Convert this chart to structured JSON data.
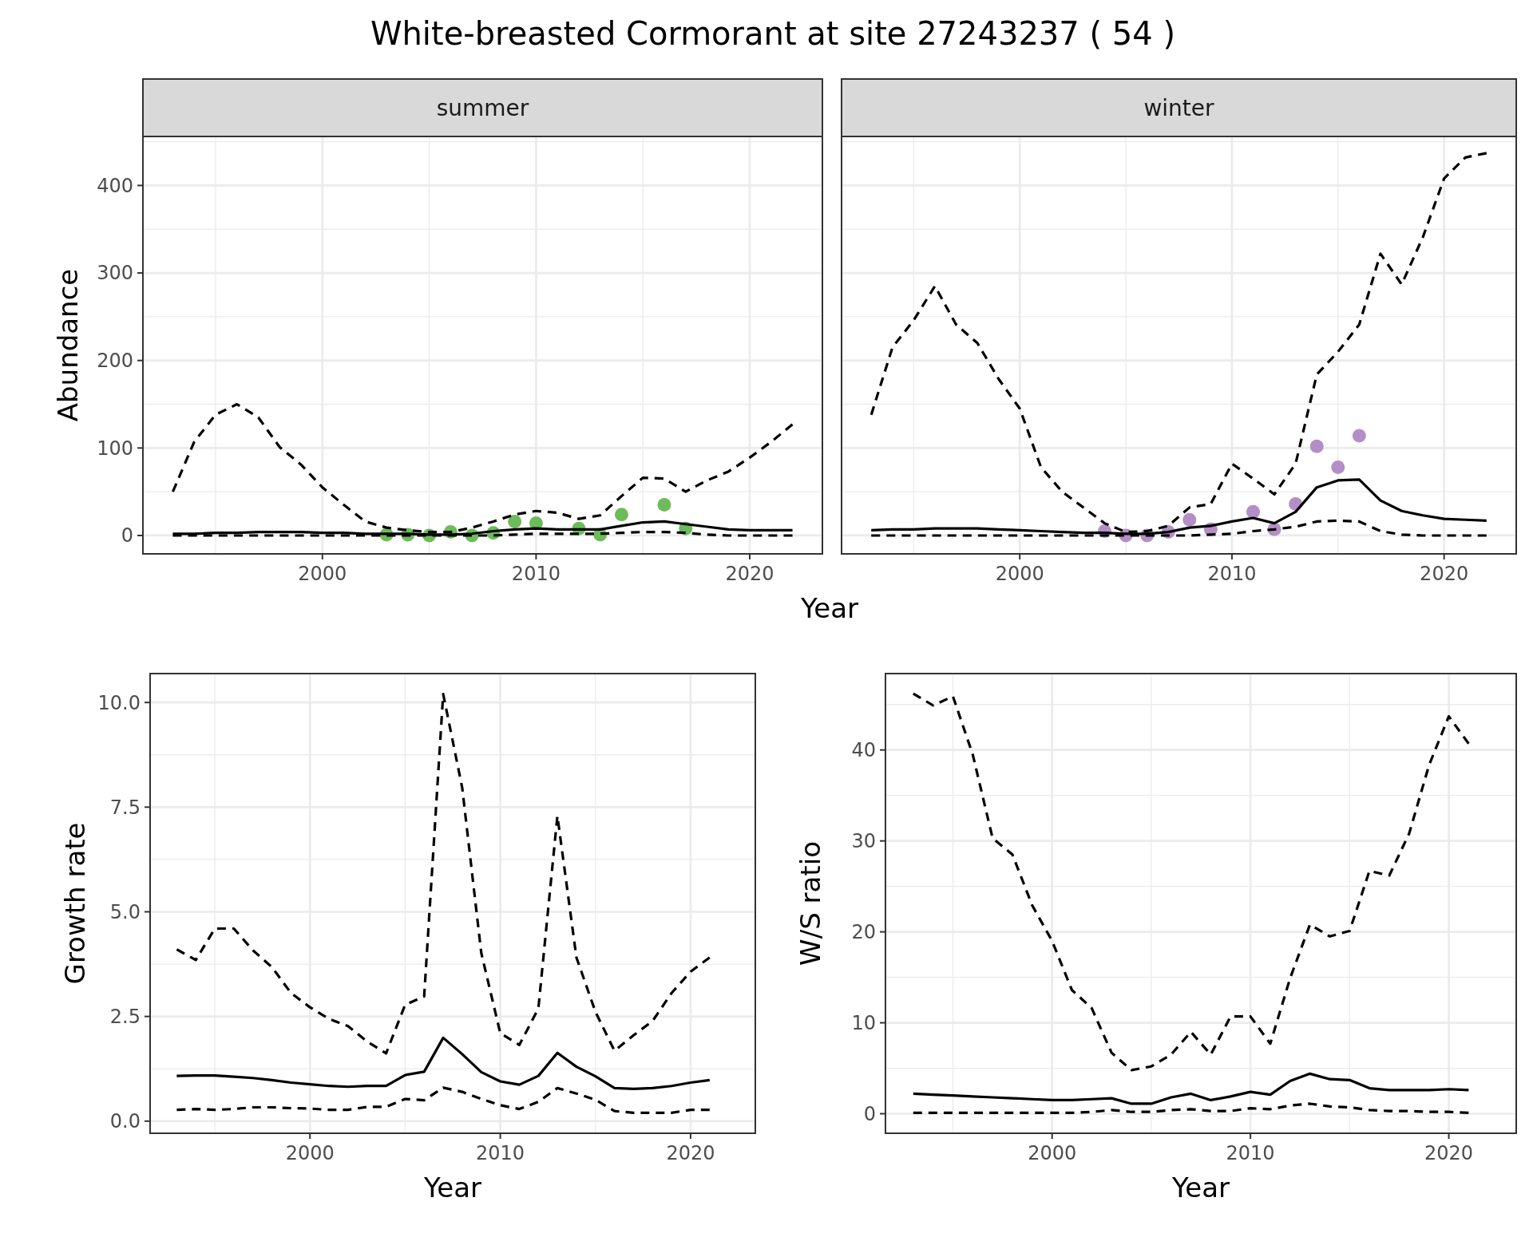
{
  "chart_data": [
    {
      "type": "line",
      "title": "White-breasted Cormorant at site 27243237 ( 54 )",
      "subtitle": "summer",
      "xlabel": "Year",
      "ylabel": "Abundance",
      "xlim": [
        1991.6,
        2023.4
      ],
      "ylim": [
        -21,
        456
      ],
      "xticks": [
        2000,
        2010,
        2020
      ],
      "yticks": [
        0,
        100,
        200,
        300,
        400
      ],
      "grid": true,
      "series": [
        {
          "type": "line",
          "color": "#000000",
          "line_style": "dashed",
          "x": [
            1993,
            1994,
            1995,
            1996,
            1997,
            1998,
            1999,
            2000,
            2001,
            2002,
            2003,
            2004,
            2005,
            2006,
            2007,
            2008,
            2009,
            2010,
            2011,
            2012,
            2013,
            2014,
            2015,
            2016,
            2017,
            2018,
            2019,
            2020,
            2021,
            2022
          ],
          "values": [
            50,
            107,
            138,
            150,
            135,
            101,
            81,
            55,
            35,
            16,
            9,
            6,
            4,
            4,
            9,
            16,
            24,
            28,
            26,
            19,
            23,
            45,
            66,
            65,
            50,
            63,
            73,
            89,
            107,
            127
          ]
        },
        {
          "type": "line",
          "color": "#000000",
          "line_style": "solid",
          "x": [
            1993,
            1994,
            1995,
            1996,
            1997,
            1998,
            1999,
            2000,
            2001,
            2002,
            2003,
            2004,
            2005,
            2006,
            2007,
            2008,
            2009,
            2010,
            2011,
            2012,
            2013,
            2014,
            2015,
            2016,
            2017,
            2018,
            2019,
            2020,
            2021,
            2022
          ],
          "values": [
            2,
            2,
            3,
            3,
            4,
            4,
            4,
            3,
            3,
            2,
            2,
            2,
            1,
            1,
            2,
            5,
            7,
            8,
            7,
            7,
            7,
            11,
            15,
            16,
            13,
            10,
            7,
            6,
            6,
            6
          ]
        },
        {
          "type": "line",
          "color": "#000000",
          "line_style": "dashed",
          "x": [
            1993,
            1994,
            1995,
            1996,
            1997,
            1998,
            1999,
            2000,
            2001,
            2002,
            2003,
            2004,
            2005,
            2006,
            2007,
            2008,
            2009,
            2010,
            2011,
            2012,
            2013,
            2014,
            2015,
            2016,
            2017,
            2018,
            2019,
            2020,
            2021,
            2022
          ],
          "values": [
            0,
            0,
            0,
            0,
            0,
            0,
            0,
            0,
            0,
            0,
            0,
            0,
            0,
            0,
            0,
            0,
            1,
            2,
            2,
            2,
            2,
            3,
            4,
            4,
            3,
            1,
            0,
            0,
            0,
            0
          ]
        },
        {
          "type": "scatter",
          "color": "#6dbb5a",
          "marker": "circle",
          "x": [
            2003,
            2004,
            2005,
            2006,
            2007,
            2008,
            2009,
            2010,
            2012,
            2013,
            2014,
            2016,
            2017
          ],
          "values": [
            1,
            1,
            0,
            4,
            0,
            3,
            16,
            14,
            8,
            1,
            24,
            35,
            8
          ]
        }
      ]
    },
    {
      "type": "line",
      "subtitle": "winter",
      "xlim": [
        1991.6,
        2023.4
      ],
      "ylim": [
        -21,
        456
      ],
      "xticks": [
        2000,
        2010,
        2020
      ],
      "yticks": [
        0,
        100,
        200,
        300,
        400
      ],
      "grid": true,
      "tick_labels": "x",
      "series": [
        {
          "type": "line",
          "color": "#000000",
          "line_style": "dashed",
          "x": [
            1993,
            1994,
            1995,
            1996,
            1997,
            1998,
            1999,
            2000,
            2001,
            2002,
            2003,
            2004,
            2005,
            2006,
            2007,
            2008,
            2009,
            2010,
            2011,
            2012,
            2013,
            2014,
            2015,
            2016,
            2017,
            2018,
            2019,
            2020,
            2021,
            2022
          ],
          "values": [
            138,
            215,
            246,
            285,
            241,
            220,
            179,
            145,
            78,
            50,
            32,
            14,
            4,
            5,
            11,
            32,
            36,
            82,
            65,
            47,
            82,
            184,
            210,
            241,
            322,
            287,
            341,
            408,
            432,
            437
          ]
        },
        {
          "type": "line",
          "color": "#000000",
          "line_style": "solid",
          "x": [
            1993,
            1994,
            1995,
            1996,
            1997,
            1998,
            1999,
            2000,
            2001,
            2002,
            2003,
            2004,
            2005,
            2006,
            2007,
            2008,
            2009,
            2010,
            2011,
            2012,
            2013,
            2014,
            2015,
            2016,
            2017,
            2018,
            2019,
            2020,
            2021,
            2022
          ],
          "values": [
            6,
            7,
            7,
            8,
            8,
            8,
            7,
            6,
            5,
            4,
            3,
            3,
            2,
            2,
            4,
            9,
            11,
            16,
            20,
            14,
            27,
            55,
            63,
            64,
            40,
            28,
            23,
            19,
            18,
            17
          ]
        },
        {
          "type": "line",
          "color": "#000000",
          "line_style": "dashed",
          "x": [
            1993,
            1994,
            1995,
            1996,
            1997,
            1998,
            1999,
            2000,
            2001,
            2002,
            2003,
            2004,
            2005,
            2006,
            2007,
            2008,
            2009,
            2010,
            2011,
            2012,
            2013,
            2014,
            2015,
            2016,
            2017,
            2018,
            2019,
            2020,
            2021,
            2022
          ],
          "values": [
            0,
            0,
            0,
            0,
            0,
            0,
            0,
            0,
            0,
            0,
            0,
            0,
            0,
            0,
            0,
            0,
            1,
            2,
            5,
            7,
            10,
            16,
            17,
            16,
            5,
            1,
            0,
            0,
            0,
            0
          ]
        },
        {
          "type": "scatter",
          "color": "#b48ec6",
          "marker": "circle",
          "x": [
            2004,
            2005,
            2006,
            2007,
            2008,
            2009,
            2011,
            2012,
            2013,
            2014,
            2015,
            2016
          ],
          "values": [
            5,
            0,
            0,
            4,
            18,
            7,
            27,
            7,
            36,
            102,
            78,
            114
          ]
        }
      ]
    },
    {
      "type": "line",
      "xlabel": "Year",
      "ylabel": "Growth rate",
      "xlim": [
        1991.6,
        2023.4
      ],
      "ylim": [
        -0.29,
        10.69
      ],
      "xticks": [
        2000,
        2010,
        2020
      ],
      "yticks": [
        {
          "value": 0,
          "label": "0.0"
        },
        {
          "value": 2.5,
          "label": "2.5"
        },
        {
          "value": 5,
          "label": "5.0"
        },
        {
          "value": 7.5,
          "label": "7.5"
        },
        {
          "value": 10,
          "label": "10.0"
        }
      ],
      "grid": true,
      "series": [
        {
          "type": "line",
          "color": "#000000",
          "line_style": "dashed",
          "x": [
            1993,
            1994,
            1995,
            1996,
            1997,
            1998,
            1999,
            2000,
            2001,
            2002,
            2003,
            2004,
            2005,
            2006,
            2007,
            2008,
            2009,
            2010,
            2011,
            2012,
            2013,
            2014,
            2015,
            2016,
            2017,
            2018,
            2019,
            2020,
            2021
          ],
          "values": [
            4.1,
            3.85,
            4.6,
            4.6,
            4.08,
            3.68,
            3.06,
            2.72,
            2.44,
            2.27,
            1.9,
            1.62,
            2.78,
            2.98,
            10.2,
            7.96,
            4.02,
            2.1,
            1.82,
            2.69,
            7.29,
            3.91,
            2.61,
            1.68,
            2.05,
            2.39,
            3.06,
            3.57,
            3.91
          ]
        },
        {
          "type": "line",
          "color": "#000000",
          "line_style": "solid",
          "x": [
            1993,
            1994,
            1995,
            1996,
            1997,
            1998,
            1999,
            2000,
            2001,
            2002,
            2003,
            2004,
            2005,
            2006,
            2007,
            2008,
            2009,
            2010,
            2011,
            2012,
            2013,
            2014,
            2015,
            2016,
            2017,
            2018,
            2019,
            2020,
            2021
          ],
          "values": [
            1.08,
            1.09,
            1.09,
            1.06,
            1.03,
            0.98,
            0.92,
            0.88,
            0.84,
            0.82,
            0.84,
            0.84,
            1.1,
            1.18,
            1.99,
            1.6,
            1.17,
            0.95,
            0.87,
            1.08,
            1.63,
            1.3,
            1.07,
            0.79,
            0.77,
            0.79,
            0.84,
            0.92,
            0.98
          ]
        },
        {
          "type": "line",
          "color": "#000000",
          "line_style": "dashed",
          "x": [
            1993,
            1994,
            1995,
            1996,
            1997,
            1998,
            1999,
            2000,
            2001,
            2002,
            2003,
            2004,
            2005,
            2006,
            2007,
            2008,
            2009,
            2010,
            2011,
            2012,
            2013,
            2014,
            2015,
            2016,
            2017,
            2018,
            2019,
            2020,
            2021
          ],
          "values": [
            0.27,
            0.29,
            0.27,
            0.29,
            0.33,
            0.33,
            0.31,
            0.3,
            0.27,
            0.27,
            0.34,
            0.34,
            0.53,
            0.5,
            0.8,
            0.7,
            0.53,
            0.38,
            0.29,
            0.46,
            0.79,
            0.66,
            0.51,
            0.24,
            0.2,
            0.2,
            0.2,
            0.27,
            0.27
          ]
        }
      ]
    },
    {
      "type": "line",
      "xlabel": "Year",
      "ylabel": "W/S ratio",
      "xlim": [
        1991.6,
        2023.4
      ],
      "ylim": [
        -2.15,
        48.4
      ],
      "xticks": [
        2000,
        2010,
        2020
      ],
      "yticks": [
        0,
        10,
        20,
        30,
        40
      ],
      "grid": true,
      "series": [
        {
          "type": "line",
          "color": "#000000",
          "line_style": "dashed",
          "x": [
            1993,
            1994,
            1995,
            1996,
            1997,
            1998,
            1999,
            2000,
            2001,
            2002,
            2003,
            2004,
            2005,
            2006,
            2007,
            2008,
            2009,
            2010,
            2011,
            2012,
            2013,
            2014,
            2015,
            2016,
            2017,
            2018,
            2019,
            2020,
            2021
          ],
          "values": [
            46.2,
            44.9,
            45.9,
            39.5,
            30.3,
            28.5,
            22.9,
            19,
            13.6,
            11.6,
            6.7,
            4.8,
            5.2,
            6.5,
            9,
            6.5,
            10.7,
            10.7,
            7.7,
            14.9,
            20.8,
            19.5,
            20.1,
            26.7,
            26.2,
            30.8,
            38.3,
            43.7,
            40.7
          ]
        },
        {
          "type": "line",
          "color": "#000000",
          "line_style": "solid",
          "x": [
            1993,
            1994,
            1995,
            1996,
            1997,
            1998,
            1999,
            2000,
            2001,
            2002,
            2003,
            2004,
            2005,
            2006,
            2007,
            2008,
            2009,
            2010,
            2011,
            2012,
            2013,
            2014,
            2015,
            2016,
            2017,
            2018,
            2019,
            2020,
            2021
          ],
          "values": [
            2.2,
            2.1,
            2,
            1.9,
            1.8,
            1.7,
            1.6,
            1.5,
            1.5,
            1.6,
            1.7,
            1.1,
            1.1,
            1.8,
            2.2,
            1.5,
            1.9,
            2.4,
            2.1,
            3.6,
            4.4,
            3.8,
            3.7,
            2.8,
            2.6,
            2.6,
            2.6,
            2.7,
            2.6
          ]
        },
        {
          "type": "line",
          "color": "#000000",
          "line_style": "dashed",
          "x": [
            1993,
            1994,
            1995,
            1996,
            1997,
            1998,
            1999,
            2000,
            2001,
            2002,
            2003,
            2004,
            2005,
            2006,
            2007,
            2008,
            2009,
            2010,
            2011,
            2012,
            2013,
            2014,
            2015,
            2016,
            2017,
            2018,
            2019,
            2020,
            2021
          ],
          "values": [
            0.1,
            0.1,
            0.1,
            0.1,
            0.1,
            0.1,
            0.1,
            0.1,
            0.1,
            0.2,
            0.4,
            0.2,
            0.2,
            0.4,
            0.5,
            0.3,
            0.3,
            0.6,
            0.5,
            0.9,
            1.1,
            0.8,
            0.7,
            0.4,
            0.3,
            0.3,
            0.2,
            0.2,
            0.1
          ]
        }
      ]
    }
  ]
}
